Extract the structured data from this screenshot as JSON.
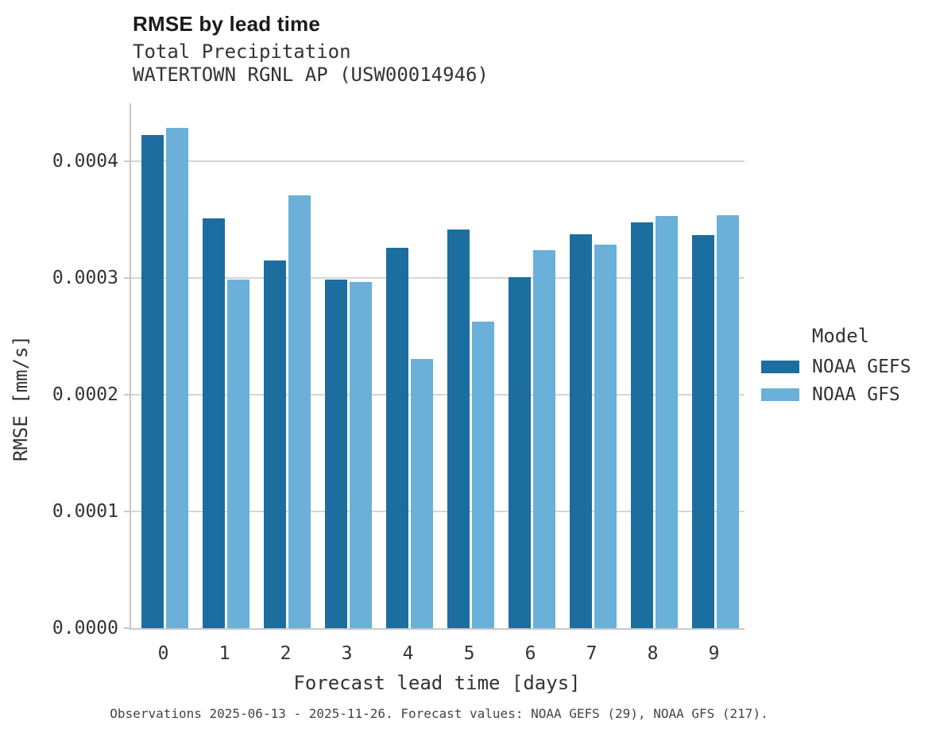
{
  "chart_data": {
    "type": "bar",
    "title": "RMSE by lead time",
    "subtitle": [
      "Total Precipitation",
      "WATERTOWN RGNL AP (USW00014946)"
    ],
    "xlabel": "Forecast lead time [days]",
    "ylabel": "RMSE [mm/s]",
    "legend_title": "Model",
    "legend_position": "right",
    "grid": true,
    "categories": [
      "0",
      "1",
      "2",
      "3",
      "4",
      "5",
      "6",
      "7",
      "8",
      "9"
    ],
    "series": [
      {
        "name": "NOAA GEFS",
        "color": "#1c6e9f",
        "values": [
          0.000423,
          0.000351,
          0.000315,
          0.000299,
          0.000326,
          0.000342,
          0.000301,
          0.000338,
          0.000348,
          0.000337
        ]
      },
      {
        "name": "NOAA GFS",
        "color": "#6ab0d8",
        "values": [
          0.000429,
          0.000299,
          0.000371,
          0.000297,
          0.000231,
          0.000263,
          0.000324,
          0.000329,
          0.000353,
          0.000354
        ]
      }
    ],
    "ylim": [
      0,
      0.00045
    ],
    "yticks": [
      0,
      0.0001,
      0.0002,
      0.0003,
      0.0004
    ],
    "ytick_labels": [
      "0.0000",
      "0.0001",
      "0.0002",
      "0.0003",
      "0.0004"
    ],
    "caption": "Observations 2025-06-13 - 2025-11-26. Forecast values: NOAA GEFS (29), NOAA GFS (217)."
  },
  "colors": {
    "gefs_bar": "#1c6e9f",
    "gfs_bar": "#6ab0d8",
    "gridline": "#d6d6d6",
    "axis_line": "#c9c9c9"
  }
}
